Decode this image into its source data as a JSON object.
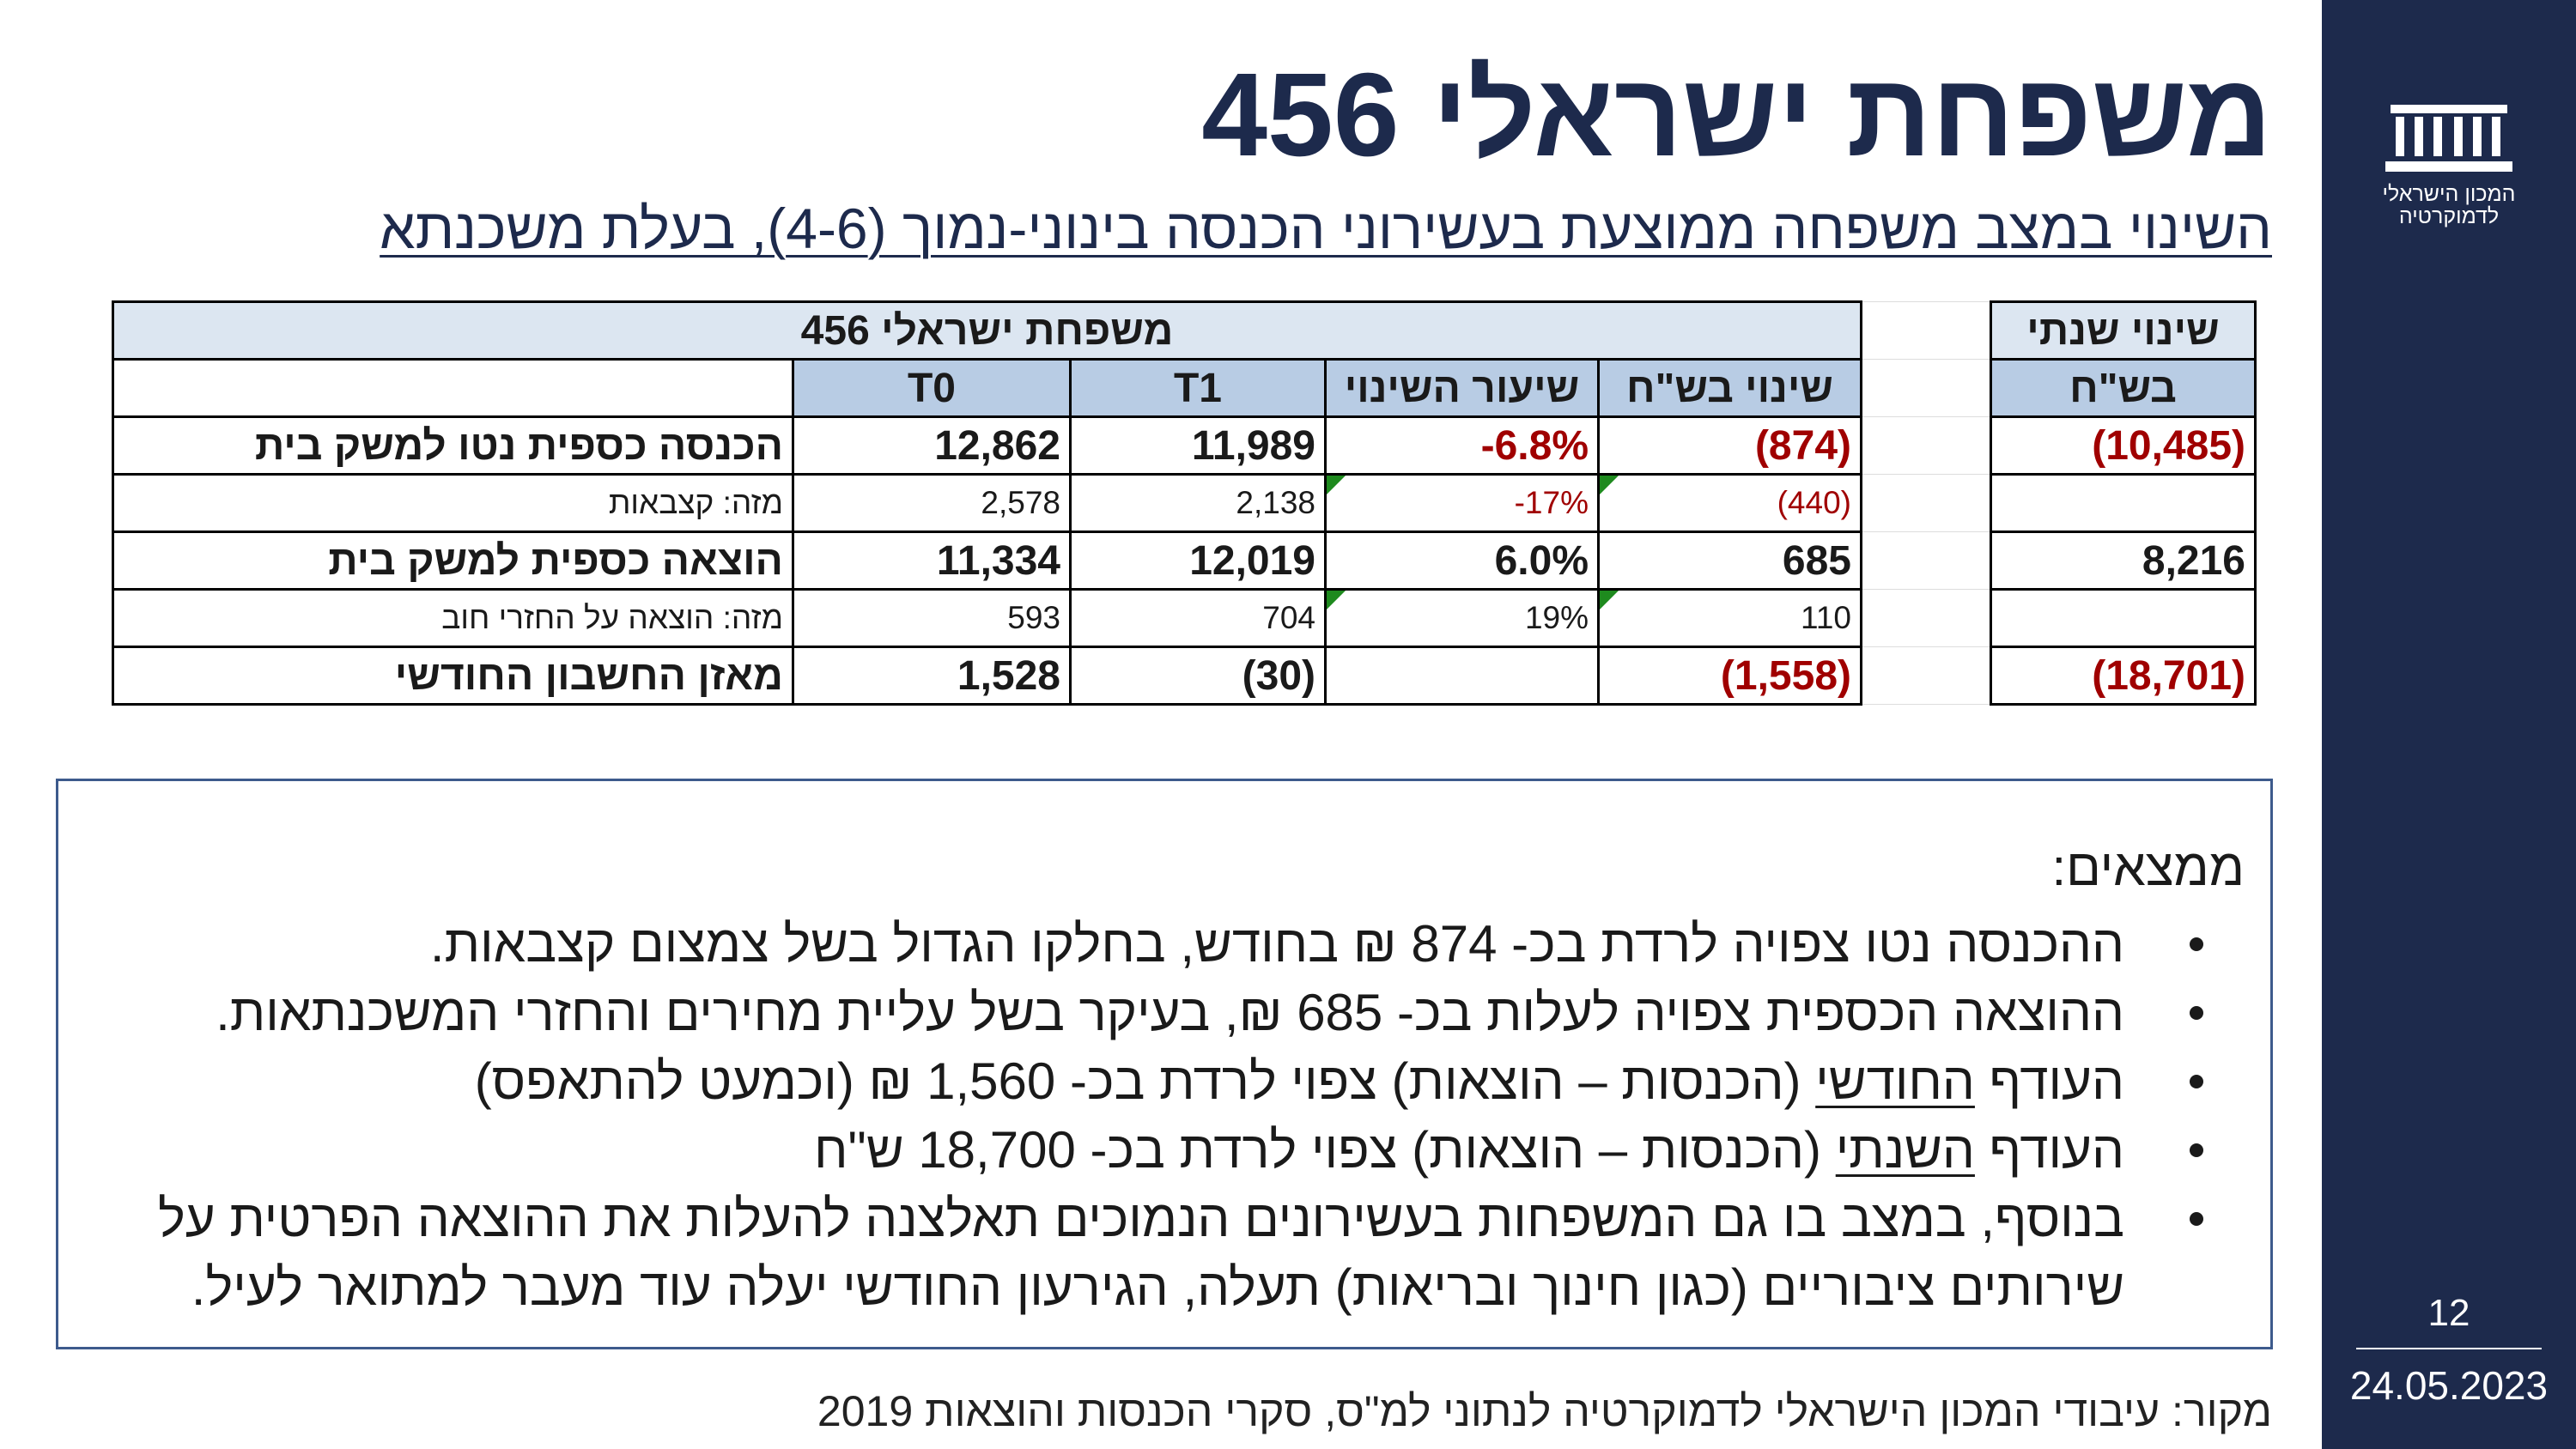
{
  "header": {
    "title": "משפחת ישראלי 456",
    "subtitle": "השינוי במצב משפחה ממוצעת בעשירוני הכנסה בינוני-נמוך (4-6), בעלת משכנתא"
  },
  "table": {
    "group_header": "משפחת ישראלי 456",
    "annual_header": "שינוי שנתי",
    "columns": [
      "T0",
      "T1",
      "שיעור השינוי",
      "שינוי בש\"ח"
    ],
    "annual_unit": "בש\"ח",
    "rows": [
      {
        "label": "הכנסה כספית נטו למשק בית",
        "bold": true,
        "values": [
          "12,862",
          "11,989",
          "-6.8%",
          "(874)"
        ],
        "annual": "(10,485)"
      },
      {
        "label": "מזה: קצבאות",
        "bold": false,
        "values": [
          "2,578",
          "2,138",
          "-17%",
          "(440)"
        ],
        "annual": null
      },
      {
        "label": "הוצאה כספית למשק בית",
        "bold": true,
        "values": [
          "11,334",
          "12,019",
          "6.0%",
          "685"
        ],
        "annual": "8,216"
      },
      {
        "label": "מזה: הוצאה על החזרי חוב",
        "bold": false,
        "values": [
          "593",
          "704",
          "19%",
          "110"
        ],
        "annual": null
      },
      {
        "label": "מאזן החשבון החודשי",
        "bold": true,
        "values": [
          "1,528",
          "(30)",
          null,
          "(1,558)"
        ],
        "annual": "(18,701)"
      }
    ]
  },
  "findings": {
    "heading": "ממצאים:",
    "bullets": [
      {
        "parts": [
          "ההכנסה נטו צפויה לרדת בכ- 874 ₪ בחודש, בחלקו הגדול בשל צמצום קצבאות."
        ]
      },
      {
        "parts": [
          "ההוצאה הכספית צפויה לעלות בכ- 685 ₪, בעיקר בשל עליית מחירים והחזרי המשכנתאות."
        ]
      },
      {
        "parts": [
          "העודף ",
          "החודשי",
          " (הכנסות – הוצאות) צפוי לרדת בכ- 1,560 ₪ (וכמעט להתאפס)"
        ]
      },
      {
        "parts": [
          "העודף ",
          "השנתי",
          " (הכנסות – הוצאות) צפוי לרדת בכ- 18,700 ש\"ח"
        ]
      },
      {
        "parts": [
          "בנוסף, במצב בו גם המשפחות בעשירונים הנמוכים תאלצנה להעלות את ההוצאה הפרטית על שירותים ציבוריים (כגון חינוך ובריאות) תעלה, הגירעון החודשי יעלה עוד מעבר למתואר לעיל."
        ]
      }
    ]
  },
  "source": "מקור: עיבודי המכון הישראלי לדמוקרטיה לנתוני למ\"ס, סקרי הכנסות והוצאות 2019",
  "sidebar": {
    "logo_text": [
      "המכון הישראלי",
      "לדמוקרטיה"
    ],
    "page_number": 12,
    "date": "24.05.2023"
  }
}
